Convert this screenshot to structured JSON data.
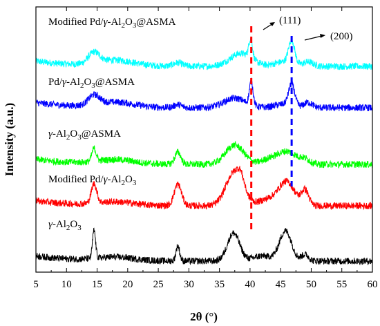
{
  "chart_data": {
    "type": "line",
    "xlabel": "2θ (°)",
    "ylabel": "Intensity (a.u.)",
    "xlim": [
      5,
      60
    ],
    "xticks": [
      "5",
      "10",
      "15",
      "20",
      "25",
      "30",
      "35",
      "40",
      "45",
      "50",
      "55",
      "60"
    ],
    "series": [
      {
        "name": "Modified Pd/γ-Al2O3@ASMA",
        "label_parts": [
          "Modified Pd/",
          "γ",
          "-Al",
          "2",
          "O",
          "3",
          "@ASMA"
        ],
        "color": "#00ffff",
        "offset": 4,
        "peaks": [
          [
            14.5,
            0.25,
            0.9
          ],
          [
            18,
            0.13,
            3
          ],
          [
            28.2,
            0.08,
            0.7
          ],
          [
            38.5,
            0.3,
            1.8
          ],
          [
            40.1,
            0.45,
            0.3
          ],
          [
            46.8,
            0.55,
            0.5
          ],
          [
            45.5,
            0.1,
            1.5
          ],
          [
            49.5,
            0.1,
            0.8
          ]
        ]
      },
      {
        "name": "Pd/γ-Al2O3@ASMA",
        "label_parts": [
          "Pd/",
          "γ",
          "-Al",
          "2",
          "O",
          "3",
          "@ASMA"
        ],
        "color": "#0000ff",
        "offset": 3,
        "peaks": [
          [
            14.5,
            0.22,
            0.9
          ],
          [
            18,
            0.12,
            3
          ],
          [
            28.2,
            0.07,
            0.6
          ],
          [
            37.5,
            0.22,
            1.8
          ],
          [
            40.2,
            0.55,
            0.3
          ],
          [
            46.8,
            0.5,
            0.5
          ],
          [
            45.5,
            0.08,
            1.5
          ],
          [
            49.5,
            0.12,
            0.7
          ]
        ]
      },
      {
        "name": "γ-Al2O3@ASMA",
        "label_parts": [
          "",
          "γ",
          "-Al",
          "2",
          "O",
          "3",
          "@ASMA"
        ],
        "color": "#00ff00",
        "offset": 2,
        "peaks": [
          [
            14.5,
            0.3,
            0.35
          ],
          [
            18,
            0.1,
            3
          ],
          [
            28.2,
            0.28,
            0.5
          ],
          [
            37.5,
            0.45,
            1.5
          ],
          [
            43,
            0.1,
            1.2
          ],
          [
            46,
            0.3,
            1.6
          ],
          [
            49,
            0.1,
            0.8
          ]
        ]
      },
      {
        "name": "Modified Pd/γ-Al2O3",
        "label_parts": [
          "Modified Pd/",
          "γ",
          "-Al",
          "2",
          "O",
          "3",
          ""
        ],
        "color": "#ff0000",
        "offset": 1,
        "peaks": [
          [
            14.5,
            0.45,
            0.45
          ],
          [
            18,
            0.08,
            3
          ],
          [
            28.2,
            0.5,
            0.6
          ],
          [
            37.5,
            0.8,
            1.4
          ],
          [
            43,
            0.15,
            1.5
          ],
          [
            46,
            0.55,
            1.3
          ],
          [
            49,
            0.35,
            0.6
          ],
          [
            38.5,
            0.2,
            0.5
          ]
        ]
      },
      {
        "name": "γ-Al2O3",
        "label_parts": [
          "",
          "γ",
          "-Al",
          "2",
          "O",
          "3",
          ""
        ],
        "color": "#000000",
        "offset": 0,
        "peaks": [
          [
            14.5,
            0.65,
            0.25
          ],
          [
            18,
            0.08,
            3
          ],
          [
            28.2,
            0.35,
            0.3
          ],
          [
            37.3,
            0.65,
            1.0
          ],
          [
            42,
            0.12,
            1.5
          ],
          [
            45.8,
            0.7,
            1.0
          ],
          [
            49,
            0.15,
            0.6
          ]
        ]
      }
    ],
    "reference_lines": [
      {
        "x": 40.2,
        "color": "#ff0000"
      },
      {
        "x": 46.8,
        "color": "#0000ff"
      }
    ],
    "annotations": [
      {
        "text": "(111)"
      },
      {
        "text": "(200)"
      }
    ]
  }
}
